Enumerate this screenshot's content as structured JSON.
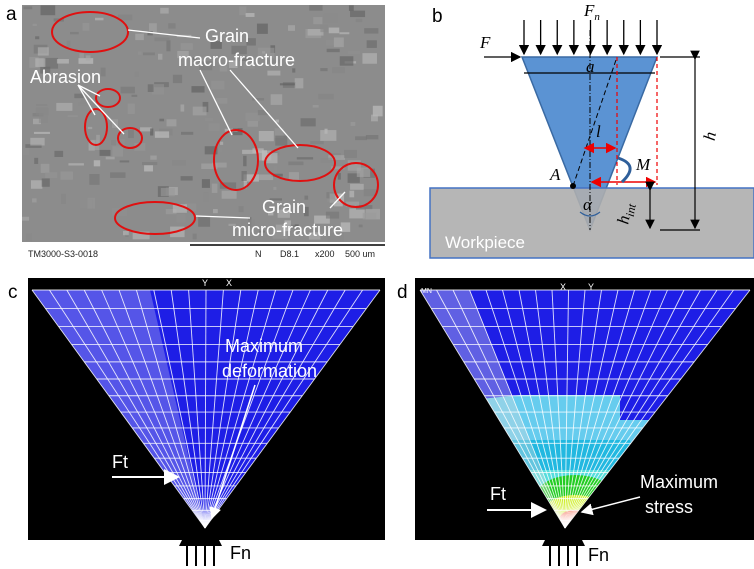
{
  "panel_a": {
    "label": "a",
    "abrasion": "Abrasion",
    "macro_fracture": [
      "Grain",
      "macro-fracture"
    ],
    "micro_fracture": [
      "Grain",
      "micro-fracture"
    ],
    "info_bar": [
      "TM3000-S3-0018",
      "N",
      "D8.1",
      "x200",
      "500 um"
    ]
  },
  "panel_b": {
    "label": "b",
    "normal_force": {
      "base": "F",
      "sub": "n"
    },
    "tangential_force": "F",
    "a": "a",
    "h": "h",
    "l": "l",
    "M": "M",
    "A": "A",
    "alpha": "α",
    "h_int": {
      "base": "h",
      "sub": "int"
    },
    "workpiece": "Workpiece"
  },
  "panel_c": {
    "label": "c",
    "axes": [
      "Y",
      "X"
    ],
    "ft": "Ft",
    "annotation": [
      "Maximum",
      "deformation"
    ],
    "fn": "Fn"
  },
  "panel_d": {
    "label": "d",
    "axes": [
      "X",
      "Y"
    ],
    "corner": "MN",
    "ft": "Ft",
    "annotation": [
      "Maximum",
      "stress"
    ],
    "fn": "Fn"
  }
}
